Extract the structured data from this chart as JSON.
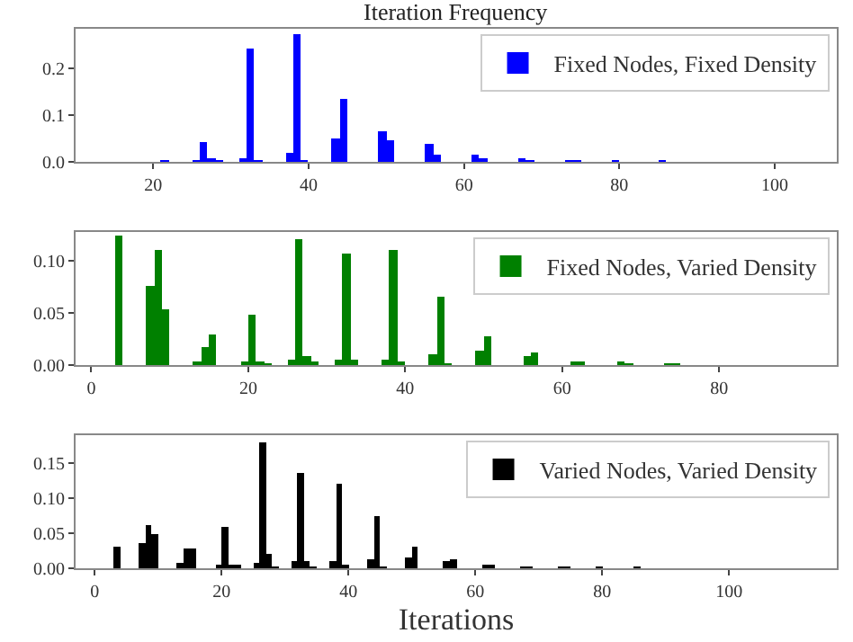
{
  "chart_data": [
    {
      "type": "histogram",
      "title": "Iteration Frequency",
      "legend": "top right",
      "bins": [
        20,
        21,
        22,
        23,
        24,
        25,
        26,
        27,
        28,
        29,
        30,
        31,
        32,
        33,
        34,
        35,
        36,
        37,
        38,
        39,
        40,
        41,
        42,
        43,
        44,
        45,
        46,
        47,
        48,
        49,
        50,
        51,
        52,
        53,
        54,
        55,
        56,
        57,
        58,
        59,
        60,
        61,
        62,
        63,
        64,
        65,
        66,
        67,
        68,
        69,
        70,
        71,
        72,
        73,
        74,
        75,
        76,
        77,
        78,
        79,
        80,
        81,
        82,
        83,
        84,
        85,
        86
      ],
      "series": [
        {
          "name": "Fixed Nodes, Fixed Density",
          "color": "#0000ff",
          "values": [
            0,
            0.001,
            0,
            0,
            0,
            0.001,
            0.042,
            0.004,
            0.001,
            0,
            0,
            0.006,
            0.242,
            0.002,
            0,
            0,
            0,
            0.018,
            0.275,
            0.001,
            0,
            0,
            0,
            0.05,
            0.135,
            0,
            0,
            0,
            0,
            0.067,
            0.048,
            0,
            0,
            0,
            0,
            0.04,
            0.016,
            0,
            0,
            0,
            0,
            0.015,
            0.006,
            0,
            0,
            0,
            0,
            0.007,
            0.003,
            0,
            0,
            0,
            0,
            0.003,
            0.001,
            0,
            0,
            0,
            0,
            0.001,
            0,
            0,
            0,
            0,
            0,
            0.001
          ]
        }
      ],
      "xlim": [
        10,
        108
      ],
      "xticks": [
        20,
        40,
        60,
        80,
        100
      ],
      "ylim": [
        0,
        0.285
      ],
      "yticks": [
        {
          "value": 0,
          "label": "0.0"
        },
        {
          "value": 0.1,
          "label": "0.1"
        },
        {
          "value": 0.2,
          "label": "0.2"
        }
      ]
    },
    {
      "type": "histogram",
      "legend": "top right",
      "bins": [
        3,
        4,
        5,
        6,
        7,
        8,
        9,
        10,
        11,
        12,
        13,
        14,
        15,
        16,
        17,
        18,
        19,
        20,
        21,
        22,
        23,
        24,
        25,
        26,
        27,
        28,
        29,
        30,
        31,
        32,
        33,
        34,
        35,
        36,
        37,
        38,
        39,
        40,
        41,
        42,
        43,
        44,
        45,
        46,
        47,
        48,
        49,
        50,
        51,
        52,
        53,
        54,
        55,
        56,
        57,
        58,
        59,
        60,
        61,
        62,
        63,
        64,
        65,
        66,
        67,
        68,
        69,
        70,
        71,
        72,
        73,
        74,
        75
      ],
      "series": [
        {
          "name": "Fixed Nodes, Varied Density",
          "color": "#008000",
          "values": [
            0.124,
            0,
            0,
            0,
            0.076,
            0.11,
            0.053,
            0,
            0,
            0,
            0.004,
            0.017,
            0.029,
            0,
            0,
            0,
            0.003,
            0.049,
            0.002,
            0.001,
            0,
            0,
            0.005,
            0.121,
            0.009,
            0.002,
            0,
            0,
            0.006,
            0.108,
            0.006,
            0,
            0,
            0,
            0.005,
            0.11,
            0.004,
            0,
            0,
            0,
            0.01,
            0.066,
            0.001,
            0,
            0,
            0,
            0.014,
            0.027,
            0,
            0,
            0,
            0,
            0.008,
            0.012,
            0,
            0,
            0,
            0,
            0.003,
            0.004,
            0,
            0,
            0,
            0,
            0.002,
            0.001,
            0,
            0,
            0,
            0,
            0.001,
            0.001
          ]
        }
      ],
      "xlim": [
        -2,
        95
      ],
      "xticks": [
        0,
        20,
        40,
        60,
        80
      ],
      "ylim": [
        0,
        0.128
      ],
      "yticks": [
        {
          "value": 0,
          "label": "0.00"
        },
        {
          "value": 0.05,
          "label": "0.05"
        },
        {
          "value": 0.1,
          "label": "0.10"
        }
      ]
    },
    {
      "type": "histogram",
      "xlabel": "Iterations",
      "legend": "top right",
      "bins": [
        3,
        4,
        5,
        6,
        7,
        8,
        9,
        10,
        11,
        12,
        13,
        14,
        15,
        16,
        17,
        18,
        19,
        20,
        21,
        22,
        23,
        24,
        25,
        26,
        27,
        28,
        29,
        30,
        31,
        32,
        33,
        34,
        35,
        36,
        37,
        38,
        39,
        40,
        41,
        42,
        43,
        44,
        45,
        46,
        47,
        48,
        49,
        50,
        51,
        52,
        53,
        54,
        55,
        56,
        57,
        58,
        59,
        60,
        61,
        62,
        63,
        64,
        65,
        66,
        67,
        68,
        69,
        70,
        71,
        72,
        73,
        74,
        75,
        76,
        77,
        78,
        79,
        80,
        81,
        82,
        83,
        84,
        85,
        86
      ],
      "series": [
        {
          "name": "Varied Nodes, Varied Density",
          "color": "#000000",
          "values": [
            0.03,
            0,
            0,
            0,
            0.037,
            0.061,
            0.049,
            0,
            0,
            0,
            0.008,
            0.028,
            0.029,
            0,
            0,
            0,
            0.006,
            0.06,
            0.006,
            0.003,
            0,
            0,
            0.007,
            0.181,
            0.02,
            0.002,
            0,
            0,
            0.011,
            0.137,
            0.011,
            0.002,
            0,
            0,
            0.009,
            0.121,
            0.005,
            0,
            0,
            0,
            0.013,
            0.075,
            0.002,
            0,
            0,
            0,
            0.016,
            0.03,
            0,
            0,
            0,
            0,
            0.01,
            0.013,
            0,
            0,
            0,
            0,
            0.003,
            0.005,
            0,
            0,
            0,
            0,
            0.002,
            0.002,
            0,
            0,
            0,
            0,
            0.001,
            0.001,
            0,
            0,
            0,
            0,
            0.001,
            0,
            0,
            0,
            0,
            0,
            0.001
          ]
        }
      ],
      "xlim": [
        -3,
        117
      ],
      "xticks": [
        0,
        20,
        40,
        60,
        80,
        100
      ],
      "ylim": [
        0,
        0.19
      ],
      "yticks": [
        {
          "value": 0,
          "label": "0.00"
        },
        {
          "value": 0.05,
          "label": "0.05"
        },
        {
          "value": 0.1,
          "label": "0.10"
        },
        {
          "value": 0.15,
          "label": "0.15"
        }
      ]
    }
  ]
}
